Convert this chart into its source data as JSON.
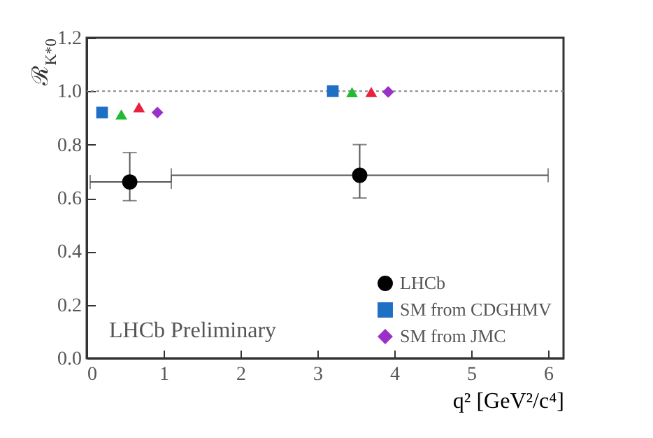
{
  "chart_data": {
    "type": "scatter",
    "xlabel": "q² [GeV²/c⁴]",
    "ylabel": "ℛ$_{K*0}$",
    "xlim": [
      0,
      6.2
    ],
    "xticks": [
      0,
      1,
      2,
      3,
      4,
      5,
      6
    ],
    "ylim": [
      0,
      1.2
    ],
    "yticks": [
      {
        "value": 0,
        "label": "0.0"
      },
      0.2,
      0.4,
      0.6,
      0.8,
      {
        "value": 1,
        "label": "1.0"
      },
      1.2
    ],
    "series": [
      {
        "name": "LHCb",
        "color": "#000000",
        "marker": "circle",
        "x": [
          0.56,
          3.55
        ],
        "values": [
          0.66,
          0.685
        ],
        "errors": [
          [
            0.59,
            0.77
          ],
          [
            0.6,
            0.8
          ]
        ],
        "xerrors": [
          [
            0.045,
            1.1
          ],
          [
            1.1,
            6.0
          ]
        ]
      },
      {
        "name": "SM from CDGHMV",
        "color": "#1f6fc5",
        "marker": "square",
        "x": [
          0.2,
          3.2
        ],
        "values": [
          0.92,
          1.0
        ]
      },
      {
        "color": "#22bb33",
        "marker": "triangle",
        "x": [
          0.45,
          3.45
        ],
        "values": [
          0.913,
          0.996
        ]
      },
      {
        "color": "#e8213f",
        "marker": "triangle",
        "x": [
          0.68,
          3.7
        ],
        "values": [
          0.94,
          0.997
        ]
      },
      {
        "name": "SM from JMC",
        "color": "#9b30c8",
        "marker": "diamond",
        "x": [
          0.92,
          3.92
        ],
        "values": [
          0.92,
          0.997
        ]
      }
    ],
    "ref_lines": [
      {
        "axis": "y",
        "value": 1,
        "color": "#888888",
        "line_style": "dotted"
      }
    ],
    "annotations": [
      "LHCb Preliminary"
    ],
    "legend": "bottom right",
    "grid": false
  }
}
